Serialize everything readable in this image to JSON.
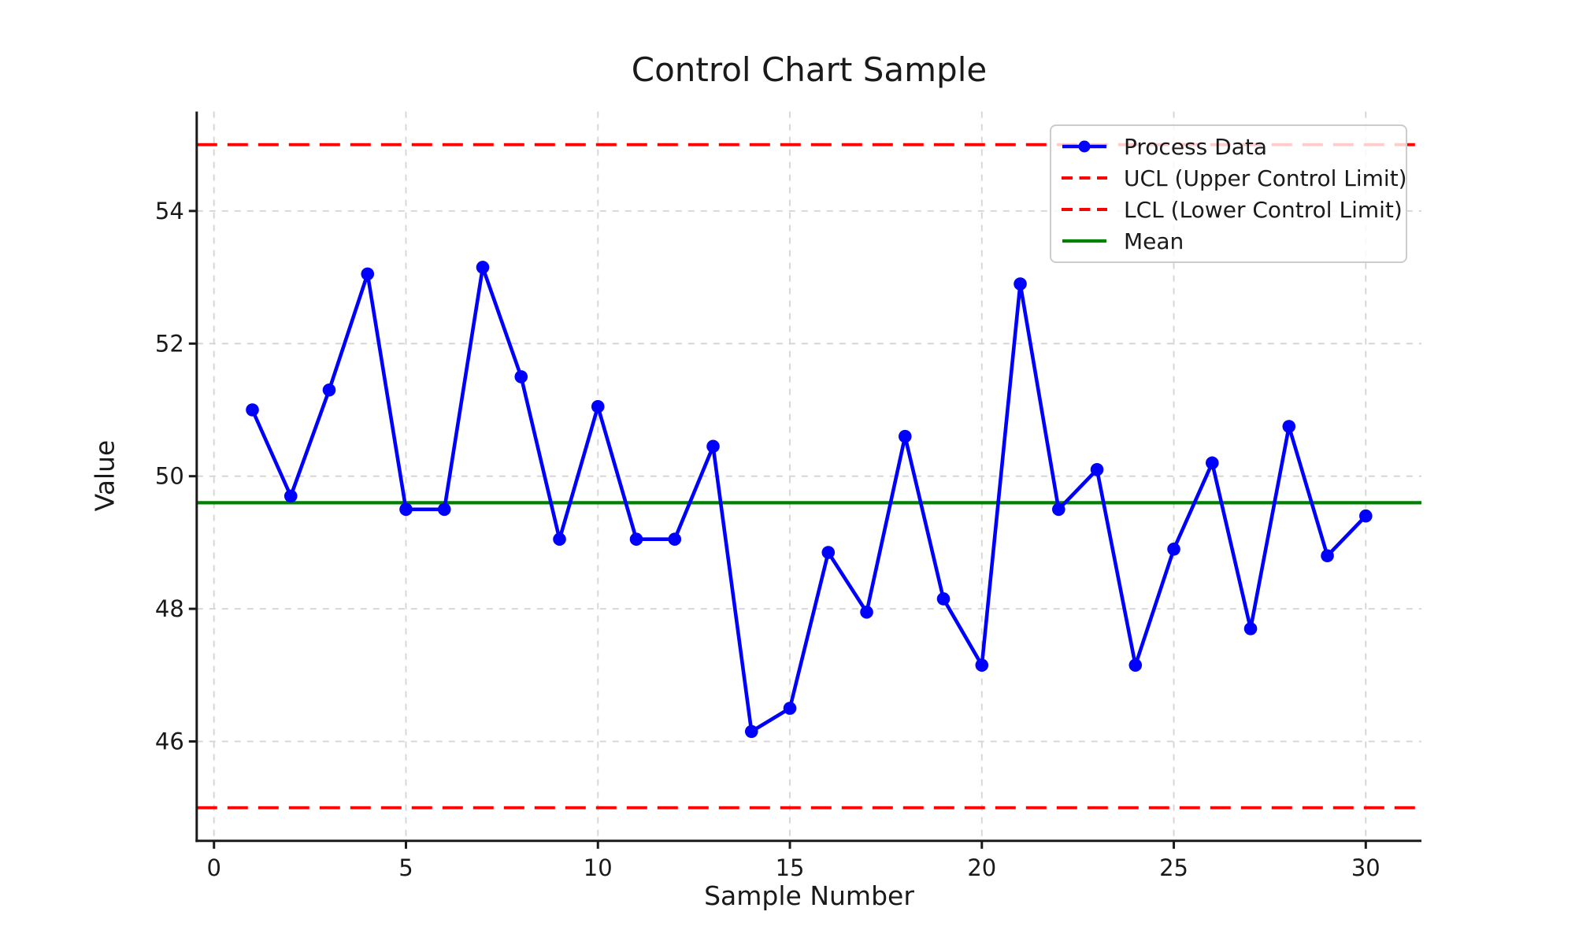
{
  "chart_data": {
    "type": "line",
    "title": "Control Chart Sample",
    "xlabel": "Sample Number",
    "ylabel": "Value",
    "x": [
      1,
      2,
      3,
      4,
      5,
      6,
      7,
      8,
      9,
      10,
      11,
      12,
      13,
      14,
      15,
      16,
      17,
      18,
      19,
      20,
      21,
      22,
      23,
      24,
      25,
      26,
      27,
      28,
      29,
      30
    ],
    "series": [
      {
        "name": "Process Data",
        "color": "#0000ff",
        "marker": "circle",
        "values": [
          51.0,
          49.7,
          51.3,
          53.05,
          49.5,
          49.5,
          53.15,
          51.5,
          49.05,
          51.05,
          49.05,
          49.05,
          50.45,
          46.15,
          46.5,
          48.85,
          47.95,
          50.6,
          48.15,
          47.15,
          52.9,
          49.5,
          50.1,
          47.15,
          48.9,
          50.2,
          47.7,
          50.75,
          48.8,
          49.4
        ]
      }
    ],
    "reference_lines": [
      {
        "id": "ucl",
        "label": "UCL (Upper Control Limit)",
        "value": 55.0,
        "color": "#ff0000",
        "style": "dashed"
      },
      {
        "id": "lcl",
        "label": "LCL (Lower Control Limit)",
        "value": 45.0,
        "color": "#ff0000",
        "style": "dashed"
      },
      {
        "id": "mean",
        "label": "Mean",
        "value": 49.6,
        "color": "#008000",
        "style": "solid"
      }
    ],
    "legend": [
      {
        "label": "Process Data",
        "color": "#0000ff",
        "style": "line-marker"
      },
      {
        "label": "UCL (Upper Control Limit)",
        "color": "#ff0000",
        "style": "dashed"
      },
      {
        "label": "LCL (Lower Control Limit)",
        "color": "#ff0000",
        "style": "dashed"
      },
      {
        "label": "Mean",
        "color": "#008000",
        "style": "solid"
      }
    ],
    "legend_position": "upper right",
    "xticks": [
      0,
      5,
      10,
      15,
      20,
      25,
      30
    ],
    "yticks": [
      46,
      48,
      50,
      52,
      54
    ],
    "xlim": [
      -0.45,
      31.45
    ],
    "ylim": [
      44.5,
      55.5
    ],
    "grid": true,
    "grid_color": "#d4d4d4",
    "text_color": "#1a1a1a",
    "background": "#ffffff"
  }
}
